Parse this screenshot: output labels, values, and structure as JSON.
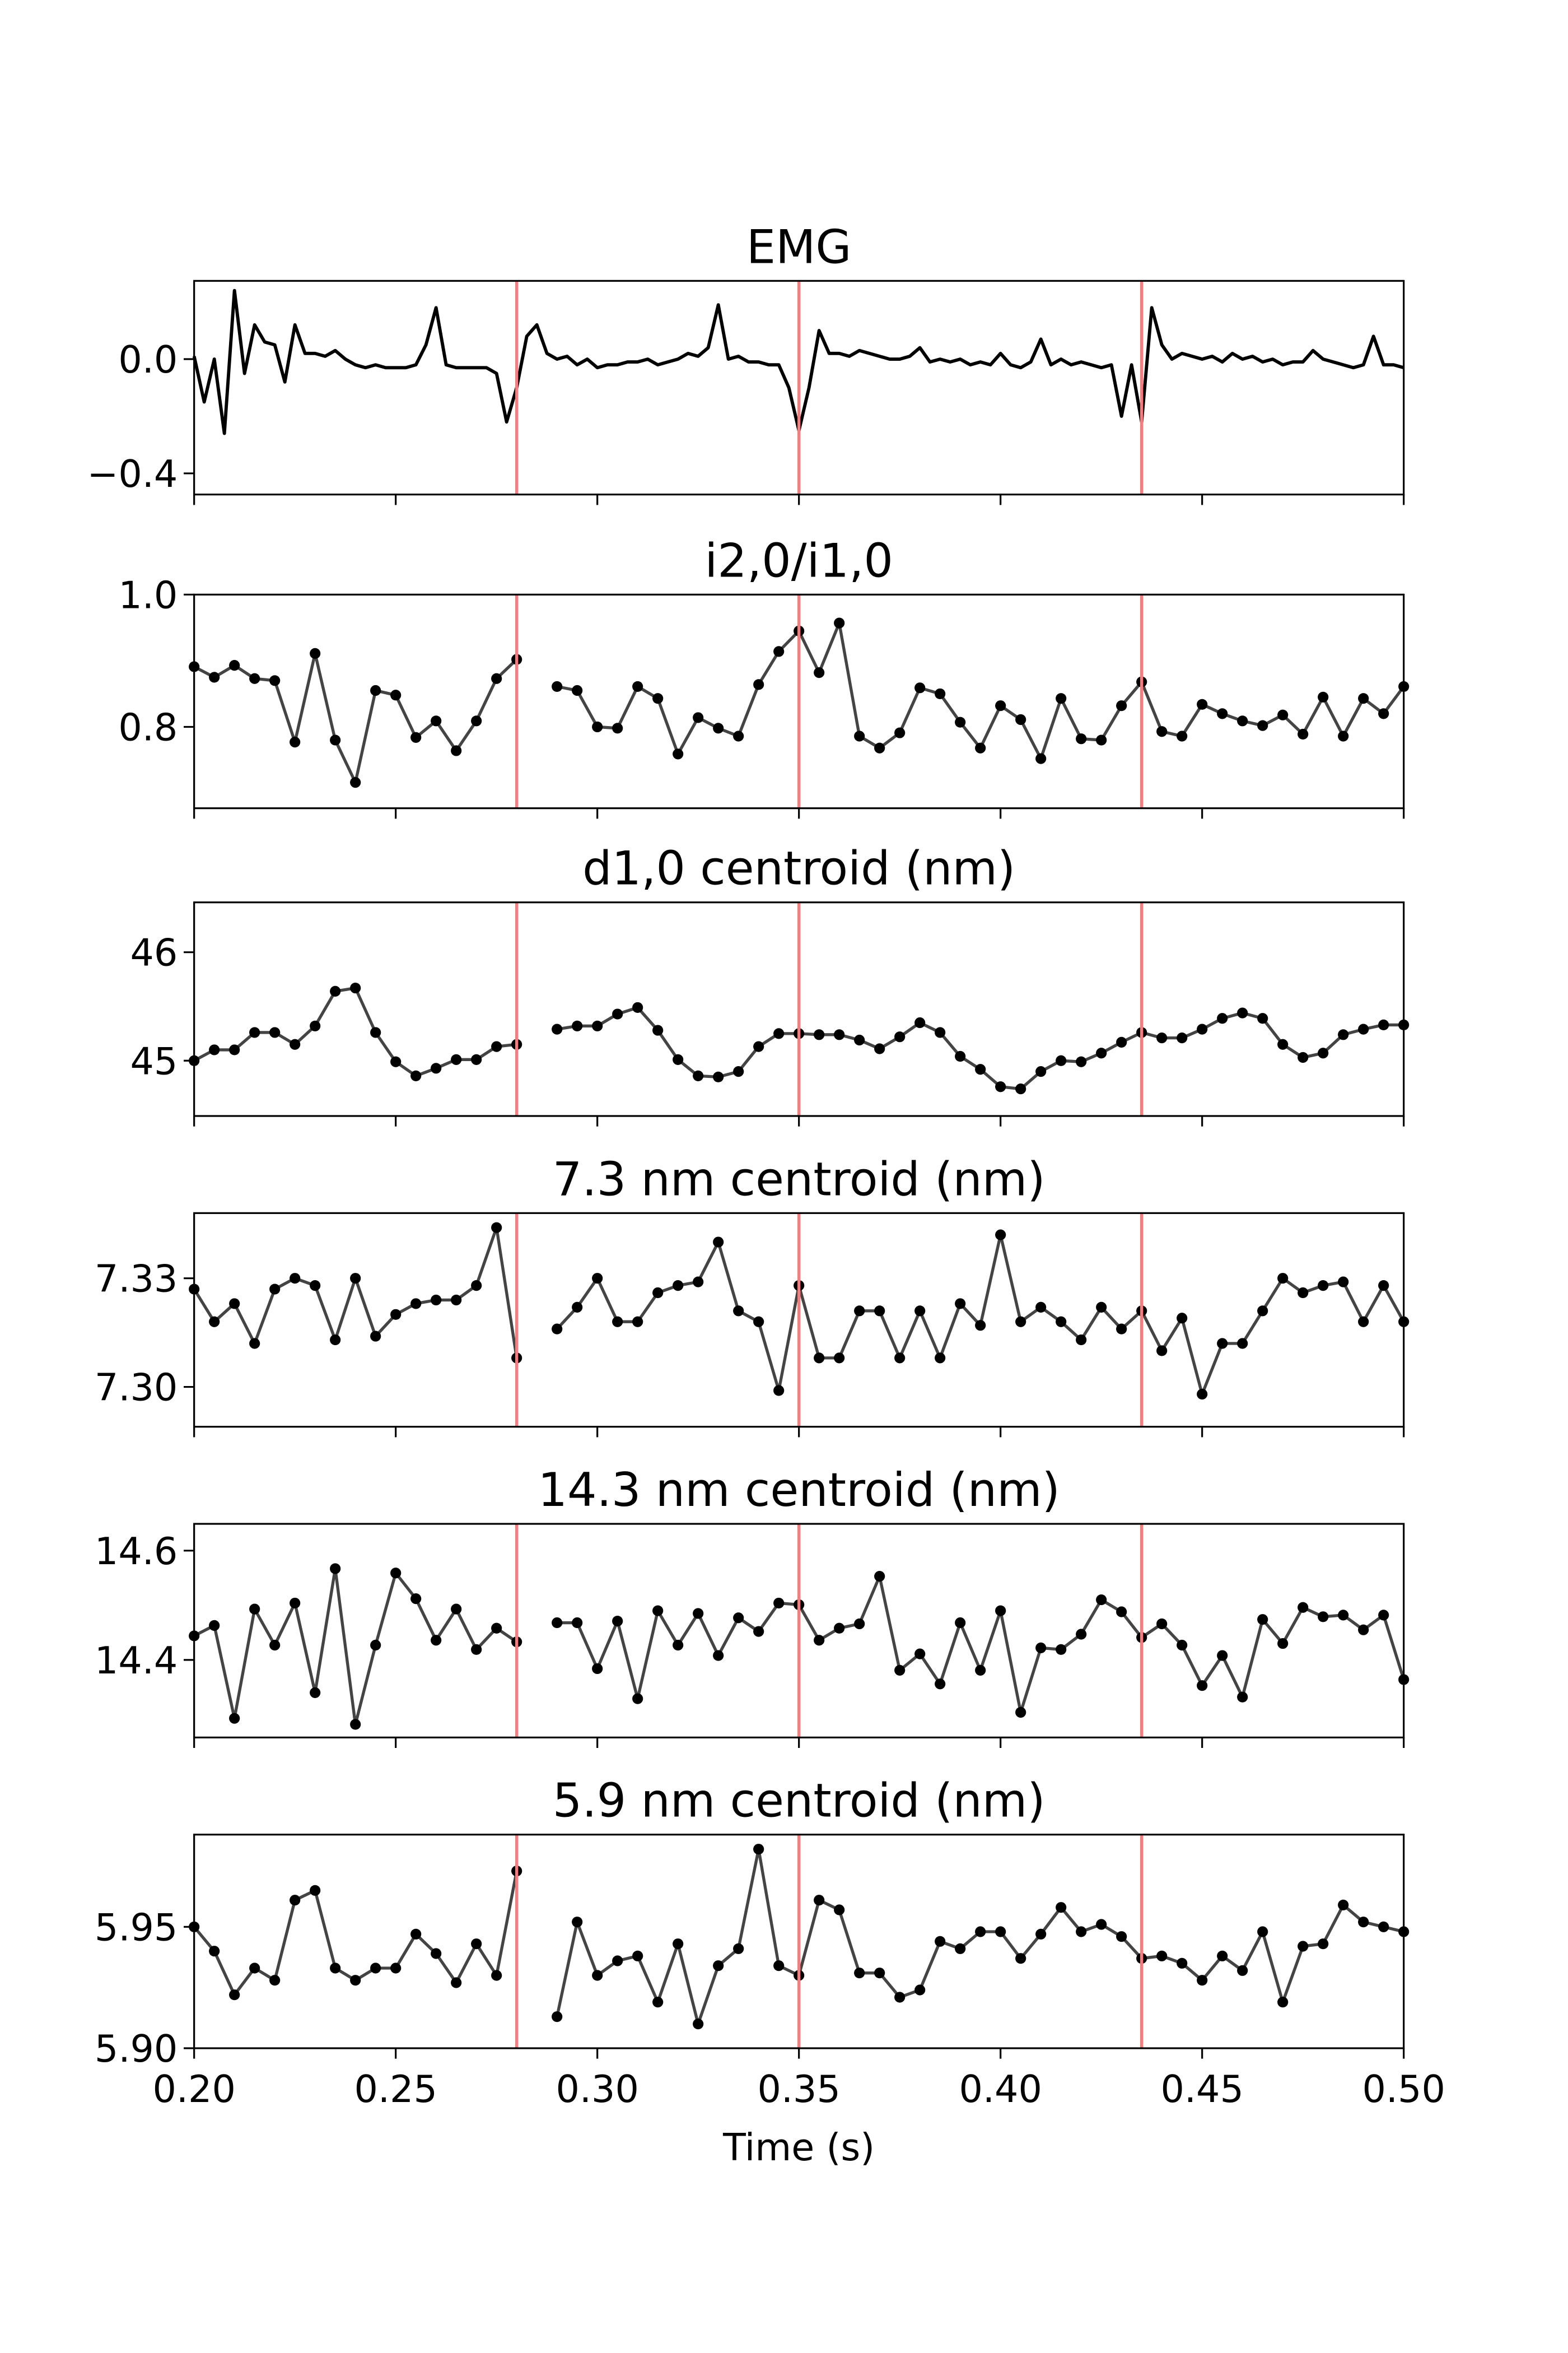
{
  "chart_data": [
    {
      "type": "line",
      "title": "EMG",
      "color": "#000000",
      "markers": false,
      "vlines": [
        0.28,
        0.35,
        0.435
      ],
      "vline_color": "#f08080",
      "xlim": [
        0.2,
        0.5
      ],
      "ylim": [
        -0.474,
        0.274
      ],
      "yticks": [
        {
          "value": -0.4,
          "label": "−0.4"
        },
        {
          "value": 0,
          "label": "0.0"
        }
      ],
      "x": [
        0.2,
        0.2025,
        0.205,
        0.2075,
        0.21,
        0.2125,
        0.215,
        0.2175,
        0.22,
        0.2225,
        0.225,
        0.2275,
        0.23,
        0.2325,
        0.235,
        0.2375,
        0.24,
        0.2425,
        0.245,
        0.2475,
        0.25,
        0.2525,
        0.255,
        0.2575,
        0.26,
        0.2625,
        0.265,
        0.2675,
        0.27,
        0.2725,
        0.275,
        0.2775,
        0.28,
        0.2825,
        0.285,
        0.2875,
        0.29,
        0.2925,
        0.295,
        0.2975,
        0.3,
        0.3025,
        0.305,
        0.3075,
        0.31,
        0.3125,
        0.315,
        0.3175,
        0.32,
        0.3225,
        0.325,
        0.3275,
        0.33,
        0.3325,
        0.335,
        0.3375,
        0.34,
        0.3425,
        0.345,
        0.3475,
        0.35,
        0.3525,
        0.355,
        0.3575,
        0.36,
        0.3625,
        0.365,
        0.3675,
        0.37,
        0.3725,
        0.375,
        0.3775,
        0.38,
        0.3825,
        0.385,
        0.3875,
        0.39,
        0.3925,
        0.395,
        0.3975,
        0.4,
        0.4025,
        0.405,
        0.4075,
        0.41,
        0.4125,
        0.415,
        0.4175,
        0.42,
        0.4225,
        0.425,
        0.4275,
        0.43,
        0.4325,
        0.435,
        0.4375,
        0.44,
        0.4425,
        0.445,
        0.4475,
        0.45,
        0.4525,
        0.455,
        0.4575,
        0.46,
        0.4625,
        0.465,
        0.4675,
        0.47,
        0.4725,
        0.475,
        0.4775,
        0.48,
        0.4825,
        0.485,
        0.4875,
        0.49,
        0.4925,
        0.495,
        0.4975,
        0.5
      ],
      "values": [
        0.01,
        -0.15,
        0.0,
        -0.26,
        0.24,
        -0.05,
        0.12,
        0.06,
        0.05,
        -0.08,
        0.12,
        0.02,
        0.02,
        0.01,
        0.03,
        0.0,
        -0.02,
        -0.03,
        -0.02,
        -0.03,
        -0.03,
        -0.03,
        -0.02,
        0.05,
        0.18,
        -0.02,
        -0.03,
        -0.03,
        -0.03,
        -0.03,
        -0.05,
        -0.22,
        -0.1,
        0.08,
        0.12,
        0.02,
        0.0,
        0.01,
        -0.02,
        0.0,
        -0.03,
        -0.02,
        -0.02,
        -0.01,
        -0.01,
        0.0,
        -0.02,
        -0.01,
        0.0,
        0.02,
        0.01,
        0.04,
        0.19,
        0.0,
        0.01,
        -0.01,
        -0.01,
        -0.02,
        -0.02,
        -0.1,
        -0.25,
        -0.1,
        0.1,
        0.02,
        0.02,
        0.01,
        0.03,
        0.02,
        0.01,
        0.0,
        0.0,
        0.01,
        0.04,
        -0.01,
        0.0,
        -0.01,
        0.0,
        -0.02,
        -0.01,
        -0.02,
        0.02,
        -0.02,
        -0.03,
        -0.01,
        0.07,
        -0.02,
        0.0,
        -0.02,
        -0.01,
        -0.02,
        -0.03,
        -0.02,
        -0.2,
        -0.02,
        -0.22,
        0.18,
        0.05,
        0.0,
        0.02,
        0.01,
        0.0,
        0.01,
        -0.01,
        0.02,
        0.0,
        0.01,
        -0.01,
        0.0,
        -0.02,
        -0.01,
        -0.01,
        0.03,
        0.0,
        -0.01,
        -0.02,
        -0.03,
        -0.02,
        0.08,
        -0.02,
        -0.02,
        -0.03
      ]
    },
    {
      "type": "line",
      "title": "i2,0/i1,0",
      "color": "#444444",
      "marker_color": "#000000",
      "markers": true,
      "vlines": [
        0.28,
        0.35,
        0.435
      ],
      "vline_color": "#f08080",
      "xlim": [
        0.2,
        0.5
      ],
      "ylim": [
        0.677,
        1.0
      ],
      "yticks": [
        0.8,
        {
          "value": 1,
          "label": "1.0"
        }
      ],
      "x": [
        0.2,
        0.205,
        0.21,
        0.215,
        0.22,
        0.225,
        0.23,
        0.235,
        0.24,
        0.245,
        0.25,
        0.255,
        0.26,
        0.265,
        0.27,
        0.275,
        0.28,
        0.285,
        0.29,
        0.295,
        0.3,
        0.305,
        0.31,
        0.315,
        0.32,
        0.325,
        0.33,
        0.335,
        0.34,
        0.345,
        0.35,
        0.355,
        0.36,
        0.365,
        0.37,
        0.375,
        0.38,
        0.385,
        0.39,
        0.395,
        0.4,
        0.405,
        0.41,
        0.415,
        0.42,
        0.425,
        0.43,
        0.435,
        0.44,
        0.445,
        0.45,
        0.455,
        0.46,
        0.465,
        0.47,
        0.475,
        0.48,
        0.485,
        0.49,
        0.495,
        0.5
      ],
      "values": [
        0.891,
        0.875,
        0.893,
        0.873,
        0.87,
        0.777,
        0.911,
        0.78,
        0.716,
        0.855,
        0.848,
        0.784,
        0.809,
        0.764,
        0.809,
        0.873,
        0.902,
        null,
        0.861,
        0.855,
        0.8,
        0.798,
        0.861,
        0.843,
        0.759,
        0.814,
        0.798,
        0.786,
        0.864,
        0.914,
        0.945,
        0.882,
        0.957,
        0.786,
        0.768,
        0.791,
        0.859,
        0.85,
        0.807,
        0.768,
        0.832,
        0.811,
        0.752,
        0.843,
        0.782,
        0.78,
        0.832,
        0.868,
        0.793,
        0.786,
        0.834,
        0.82,
        0.809,
        0.802,
        0.818,
        0.789,
        0.845,
        0.786,
        0.843,
        0.82,
        0.861
      ]
    },
    {
      "type": "line",
      "title": "d1,0 centroid (nm)",
      "color": "#444444",
      "marker_color": "#000000",
      "markers": true,
      "vlines": [
        0.28,
        0.35,
        0.435
      ],
      "vline_color": "#f08080",
      "xlim": [
        0.2,
        0.5
      ],
      "ylim": [
        44.49,
        46.46
      ],
      "yticks": [
        45,
        46
      ],
      "x": [
        0.2,
        0.205,
        0.21,
        0.215,
        0.22,
        0.225,
        0.23,
        0.235,
        0.24,
        0.245,
        0.25,
        0.255,
        0.26,
        0.265,
        0.27,
        0.275,
        0.28,
        0.285,
        0.29,
        0.295,
        0.3,
        0.305,
        0.31,
        0.315,
        0.32,
        0.325,
        0.33,
        0.335,
        0.34,
        0.345,
        0.35,
        0.355,
        0.36,
        0.365,
        0.37,
        0.375,
        0.38,
        0.385,
        0.39,
        0.395,
        0.4,
        0.405,
        0.41,
        0.415,
        0.42,
        0.425,
        0.43,
        0.435,
        0.44,
        0.445,
        0.45,
        0.455,
        0.46,
        0.465,
        0.47,
        0.475,
        0.48,
        0.485,
        0.49,
        0.495,
        0.5
      ],
      "values": [
        45.0,
        45.1,
        45.1,
        45.26,
        45.26,
        45.15,
        45.32,
        45.64,
        45.67,
        45.26,
        44.99,
        44.86,
        44.93,
        45.01,
        45.01,
        45.13,
        45.15,
        null,
        45.29,
        45.32,
        45.32,
        45.43,
        45.49,
        45.28,
        45.01,
        44.86,
        44.85,
        44.9,
        45.13,
        45.25,
        45.25,
        45.24,
        45.24,
        45.19,
        45.11,
        45.22,
        45.35,
        45.26,
        45.04,
        44.92,
        44.76,
        44.74,
        44.9,
        45.0,
        44.99,
        45.07,
        45.17,
        45.26,
        45.21,
        45.21,
        45.29,
        45.39,
        45.44,
        45.39,
        45.15,
        45.03,
        45.07,
        45.24,
        45.29,
        45.33,
        45.33
      ]
    },
    {
      "type": "line",
      "title": "7.3 nm centroid (nm)",
      "color": "#444444",
      "marker_color": "#000000",
      "markers": true,
      "vlines": [
        0.28,
        0.35,
        0.435
      ],
      "vline_color": "#f08080",
      "xlim": [
        0.2,
        0.5
      ],
      "ylim": [
        7.289,
        7.348
      ],
      "yticks": [
        {
          "value": 7.3,
          "label": "7.30"
        },
        7.33
      ],
      "x": [
        0.2,
        0.205,
        0.21,
        0.215,
        0.22,
        0.225,
        0.23,
        0.235,
        0.24,
        0.245,
        0.25,
        0.255,
        0.26,
        0.265,
        0.27,
        0.275,
        0.28,
        0.285,
        0.29,
        0.295,
        0.3,
        0.305,
        0.31,
        0.315,
        0.32,
        0.325,
        0.33,
        0.335,
        0.34,
        0.345,
        0.35,
        0.355,
        0.36,
        0.365,
        0.37,
        0.375,
        0.38,
        0.385,
        0.39,
        0.395,
        0.4,
        0.405,
        0.41,
        0.415,
        0.42,
        0.425,
        0.43,
        0.435,
        0.44,
        0.445,
        0.45,
        0.455,
        0.46,
        0.465,
        0.47,
        0.475,
        0.48,
        0.485,
        0.49,
        0.495,
        0.5
      ],
      "values": [
        7.327,
        7.318,
        7.323,
        7.312,
        7.327,
        7.33,
        7.328,
        7.313,
        7.33,
        7.314,
        7.32,
        7.323,
        7.324,
        7.324,
        7.328,
        7.344,
        7.308,
        null,
        7.316,
        7.322,
        7.33,
        7.318,
        7.318,
        7.326,
        7.328,
        7.329,
        7.34,
        7.321,
        7.318,
        7.299,
        7.328,
        7.308,
        7.308,
        7.321,
        7.321,
        7.308,
        7.321,
        7.308,
        7.323,
        7.317,
        7.342,
        7.318,
        7.322,
        7.318,
        7.313,
        7.322,
        7.316,
        7.321,
        7.31,
        7.319,
        7.298,
        7.312,
        7.312,
        7.321,
        7.33,
        7.326,
        7.328,
        7.329,
        7.318,
        7.328,
        7.318
      ]
    },
    {
      "type": "line",
      "title": "14.3 nm centroid (nm)",
      "color": "#444444",
      "marker_color": "#000000",
      "markers": true,
      "vlines": [
        0.28,
        0.35,
        0.435
      ],
      "vline_color": "#f08080",
      "xlim": [
        0.2,
        0.5
      ],
      "ylim": [
        14.258,
        14.649
      ],
      "yticks": [
        14.4,
        14.6
      ],
      "x": [
        0.2,
        0.205,
        0.21,
        0.215,
        0.22,
        0.225,
        0.23,
        0.235,
        0.24,
        0.245,
        0.25,
        0.255,
        0.26,
        0.265,
        0.27,
        0.275,
        0.28,
        0.285,
        0.29,
        0.295,
        0.3,
        0.305,
        0.31,
        0.315,
        0.32,
        0.325,
        0.33,
        0.335,
        0.34,
        0.345,
        0.35,
        0.355,
        0.36,
        0.365,
        0.37,
        0.375,
        0.38,
        0.385,
        0.39,
        0.395,
        0.4,
        0.405,
        0.41,
        0.415,
        0.42,
        0.425,
        0.43,
        0.435,
        0.44,
        0.445,
        0.45,
        0.455,
        0.46,
        0.465,
        0.47,
        0.475,
        0.48,
        0.485,
        0.49,
        0.495,
        0.5
      ],
      "values": [
        14.444,
        14.463,
        14.293,
        14.493,
        14.427,
        14.504,
        14.34,
        14.567,
        14.282,
        14.427,
        14.559,
        14.512,
        14.436,
        14.493,
        14.419,
        14.458,
        14.433,
        null,
        14.468,
        14.468,
        14.384,
        14.471,
        14.329,
        14.49,
        14.427,
        14.485,
        14.408,
        14.477,
        14.452,
        14.504,
        14.501,
        14.436,
        14.458,
        14.466,
        14.553,
        14.381,
        14.411,
        14.356,
        14.468,
        14.381,
        14.49,
        14.304,
        14.422,
        14.419,
        14.447,
        14.51,
        14.488,
        14.441,
        14.466,
        14.427,
        14.353,
        14.408,
        14.332,
        14.474,
        14.43,
        14.496,
        14.479,
        14.482,
        14.455,
        14.482,
        14.364
      ]
    },
    {
      "type": "line",
      "title": "5.9 nm centroid (nm)",
      "xlabel": "Time (s)",
      "color": "#444444",
      "marker_color": "#000000",
      "markers": true,
      "vlines": [
        0.28,
        0.35,
        0.435
      ],
      "vline_color": "#f08080",
      "xlim": [
        0.2,
        0.5
      ],
      "ylim": [
        5.9,
        5.988
      ],
      "yticks": [
        {
          "value": 5.9,
          "label": "5.90"
        },
        5.95
      ],
      "xticks": [
        {
          "value": 0.2,
          "label": "0.20"
        },
        0.25,
        {
          "value": 0.3,
          "label": "0.30"
        },
        0.35,
        {
          "value": 0.4,
          "label": "0.40"
        },
        0.45,
        {
          "value": 0.5,
          "label": "0.50"
        }
      ],
      "x": [
        0.2,
        0.205,
        0.21,
        0.215,
        0.22,
        0.225,
        0.23,
        0.235,
        0.24,
        0.245,
        0.25,
        0.255,
        0.26,
        0.265,
        0.27,
        0.275,
        0.28,
        0.285,
        0.29,
        0.295,
        0.3,
        0.305,
        0.31,
        0.315,
        0.32,
        0.325,
        0.33,
        0.335,
        0.34,
        0.345,
        0.35,
        0.355,
        0.36,
        0.365,
        0.37,
        0.375,
        0.38,
        0.385,
        0.39,
        0.395,
        0.4,
        0.405,
        0.41,
        0.415,
        0.42,
        0.425,
        0.43,
        0.435,
        0.44,
        0.445,
        0.45,
        0.455,
        0.46,
        0.465,
        0.47,
        0.475,
        0.48,
        0.485,
        0.49,
        0.495,
        0.5
      ],
      "values": [
        5.95,
        5.94,
        5.922,
        5.933,
        5.928,
        5.961,
        5.965,
        5.933,
        5.928,
        5.933,
        5.933,
        5.947,
        5.939,
        5.927,
        5.943,
        5.93,
        5.973,
        null,
        5.913,
        5.952,
        5.93,
        5.936,
        5.938,
        5.919,
        5.943,
        5.91,
        5.934,
        5.941,
        5.982,
        5.934,
        5.93,
        5.961,
        5.957,
        5.931,
        5.931,
        5.921,
        5.924,
        5.944,
        5.941,
        5.948,
        5.948,
        5.937,
        5.947,
        5.958,
        5.948,
        5.951,
        5.946,
        5.937,
        5.938,
        5.935,
        5.928,
        5.938,
        5.932,
        5.948,
        5.919,
        5.942,
        5.943,
        5.959,
        5.952,
        5.95,
        5.948
      ]
    }
  ]
}
